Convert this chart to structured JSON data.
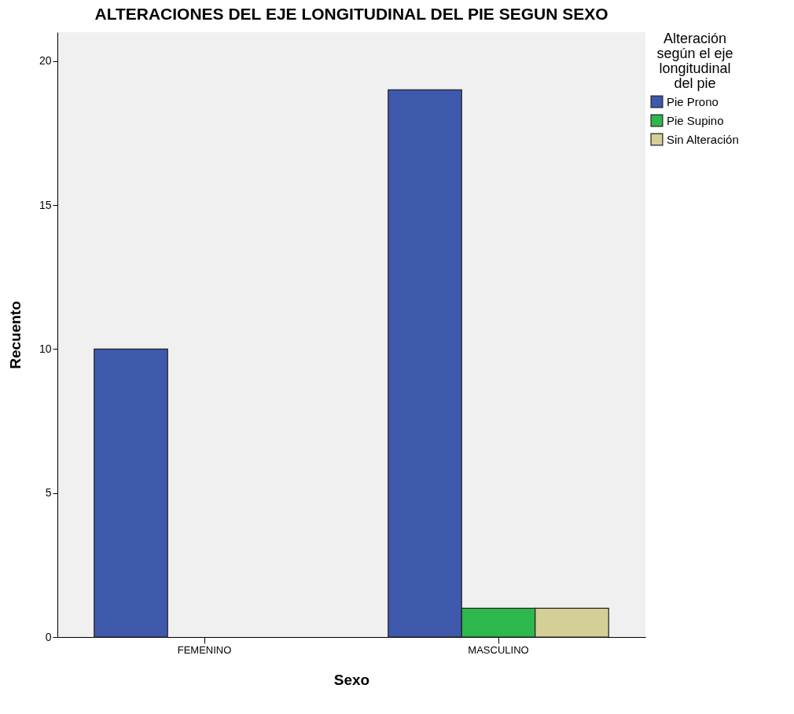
{
  "chart_data": {
    "type": "bar",
    "title": "ALTERACIONES DEL EJE LONGITUDINAL DEL PIE SEGUN SEXO",
    "xlabel": "Sexo",
    "ylabel": "Recuento",
    "legend_title": "Alteración según el eje longitudinal del pie",
    "categories": [
      "FEMENINO",
      "MASCULINO"
    ],
    "series": [
      {
        "name": "Pie Prono",
        "color": "#3e58ac",
        "values": [
          10,
          19
        ]
      },
      {
        "name": "Pie Supino",
        "color": "#2db84b",
        "values": [
          null,
          1
        ]
      },
      {
        "name": "Sin Alteración",
        "color": "#d4cf96",
        "values": [
          null,
          1
        ]
      }
    ],
    "ylim": [
      0,
      21
    ],
    "yticks": [
      0,
      5,
      10,
      15,
      20
    ],
    "grid": false,
    "legend": "top right"
  }
}
